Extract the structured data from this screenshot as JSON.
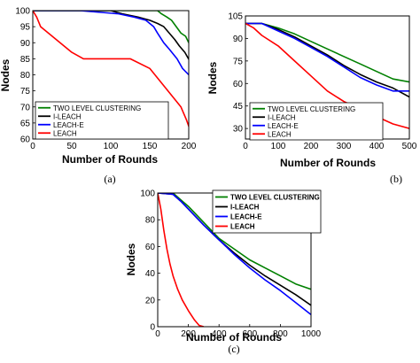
{
  "chart_data": [
    {
      "type": "line",
      "caption": "(a)",
      "xlabel": "Number of Rounds",
      "ylabel": "Nodes",
      "xlim": [
        0,
        200
      ],
      "ylim": [
        60,
        100
      ],
      "xticks": [
        0,
        50,
        100,
        150,
        200
      ],
      "yticks": [
        60,
        65,
        70,
        75,
        80,
        85,
        90,
        95,
        100
      ],
      "legend": "bottom-left",
      "series": [
        {
          "name": "TWO LEVEL CLUSTERING",
          "color": "#008000",
          "x": [
            0,
            160,
            165,
            172,
            178,
            184,
            190,
            196,
            200
          ],
          "y": [
            100,
            100,
            99,
            98,
            97,
            95,
            93,
            92,
            90
          ]
        },
        {
          "name": "I-LEACH",
          "color": "#000000",
          "x": [
            0,
            100,
            115,
            135,
            150,
            160,
            168,
            175,
            182,
            188,
            195,
            202
          ],
          "y": [
            100,
            100,
            99,
            98,
            97,
            96,
            95,
            93,
            91,
            89,
            87,
            84
          ]
        },
        {
          "name": "LEACH-E",
          "color": "#0000ff",
          "x": [
            0,
            60,
            110,
            130,
            145,
            155,
            160,
            168,
            175,
            185,
            192,
            200
          ],
          "y": [
            100,
            100,
            99,
            98,
            97,
            95,
            93,
            90,
            88,
            85,
            82,
            80
          ]
        },
        {
          "name": "LEACH",
          "color": "#ff0000",
          "x": [
            0,
            5,
            10,
            20,
            30,
            40,
            50,
            65,
            70,
            90,
            110,
            125,
            150,
            160,
            170,
            180,
            190,
            197,
            203
          ],
          "y": [
            100,
            98,
            95,
            93,
            91,
            89,
            87,
            85,
            85,
            85,
            85,
            85,
            82,
            79,
            76,
            73,
            70,
            66,
            62
          ]
        }
      ]
    },
    {
      "type": "line",
      "caption": "(b)",
      "xlabel": "Number of Rounds",
      "ylabel": "Nodes",
      "xlim": [
        0,
        500
      ],
      "ylim": [
        23,
        105
      ],
      "xticks": [
        0,
        100,
        200,
        300,
        400,
        500
      ],
      "yticks": [
        30,
        45,
        60,
        75,
        90,
        105
      ],
      "legend": "bottom-left",
      "series": [
        {
          "name": "TWO LEVEL CLUSTERING",
          "color": "#008000",
          "x": [
            0,
            50,
            100,
            150,
            200,
            250,
            300,
            350,
            400,
            450,
            500
          ],
          "y": [
            100,
            100,
            97,
            93,
            88,
            83,
            78,
            73,
            68,
            63,
            61
          ]
        },
        {
          "name": "I-LEACH",
          "color": "#000000",
          "x": [
            0,
            50,
            100,
            150,
            200,
            250,
            300,
            350,
            400,
            450,
            500
          ],
          "y": [
            100,
            100,
            96,
            91,
            85,
            79,
            72,
            66,
            61,
            57,
            51
          ]
        },
        {
          "name": "LEACH-E",
          "color": "#0000ff",
          "x": [
            0,
            50,
            100,
            150,
            200,
            250,
            300,
            350,
            400,
            450,
            500
          ],
          "y": [
            100,
            100,
            95,
            90,
            84,
            78,
            71,
            64,
            59,
            55,
            55
          ]
        },
        {
          "name": "LEACH",
          "color": "#ff0000",
          "x": [
            0,
            25,
            50,
            100,
            150,
            200,
            250,
            300,
            350,
            400,
            450,
            500
          ],
          "y": [
            100,
            97,
            92,
            85,
            75,
            65,
            55,
            48,
            43,
            38,
            33,
            30
          ]
        }
      ]
    },
    {
      "type": "line",
      "caption": "(c)",
      "xlabel": "Number of Rounds",
      "ylabel": "Nodes",
      "xlim": [
        0,
        1000
      ],
      "ylim": [
        0,
        100
      ],
      "xticks": [
        0,
        200,
        400,
        600,
        800,
        1000
      ],
      "yticks": [
        0,
        20,
        40,
        60,
        80,
        100
      ],
      "legend": "top-right",
      "series": [
        {
          "name": "TWO LEVEL CLUSTERING",
          "color": "#008000",
          "x": [
            0,
            100,
            150,
            200,
            300,
            400,
            500,
            600,
            700,
            800,
            900,
            1000
          ],
          "y": [
            100,
            100,
            95,
            90,
            78,
            66,
            58,
            50,
            44,
            38,
            32,
            28
          ]
        },
        {
          "name": "I-LEACH",
          "color": "#000000",
          "x": [
            0,
            100,
            150,
            200,
            300,
            400,
            500,
            600,
            700,
            800,
            900,
            1000
          ],
          "y": [
            100,
            99,
            94,
            88,
            76,
            65,
            55,
            46,
            38,
            31,
            24,
            16
          ]
        },
        {
          "name": "LEACH-E",
          "color": "#0000ff",
          "x": [
            0,
            100,
            150,
            200,
            300,
            400,
            500,
            600,
            700,
            800,
            900,
            1000
          ],
          "y": [
            100,
            99,
            94,
            88,
            76,
            65,
            54,
            44,
            35,
            27,
            18,
            9
          ]
        },
        {
          "name": "LEACH",
          "color": "#ff0000",
          "x": [
            0,
            20,
            40,
            60,
            80,
            100,
            130,
            160,
            200,
            240,
            270,
            300
          ],
          "y": [
            100,
            88,
            72,
            58,
            47,
            38,
            28,
            20,
            12,
            5,
            1,
            0
          ]
        }
      ]
    }
  ]
}
